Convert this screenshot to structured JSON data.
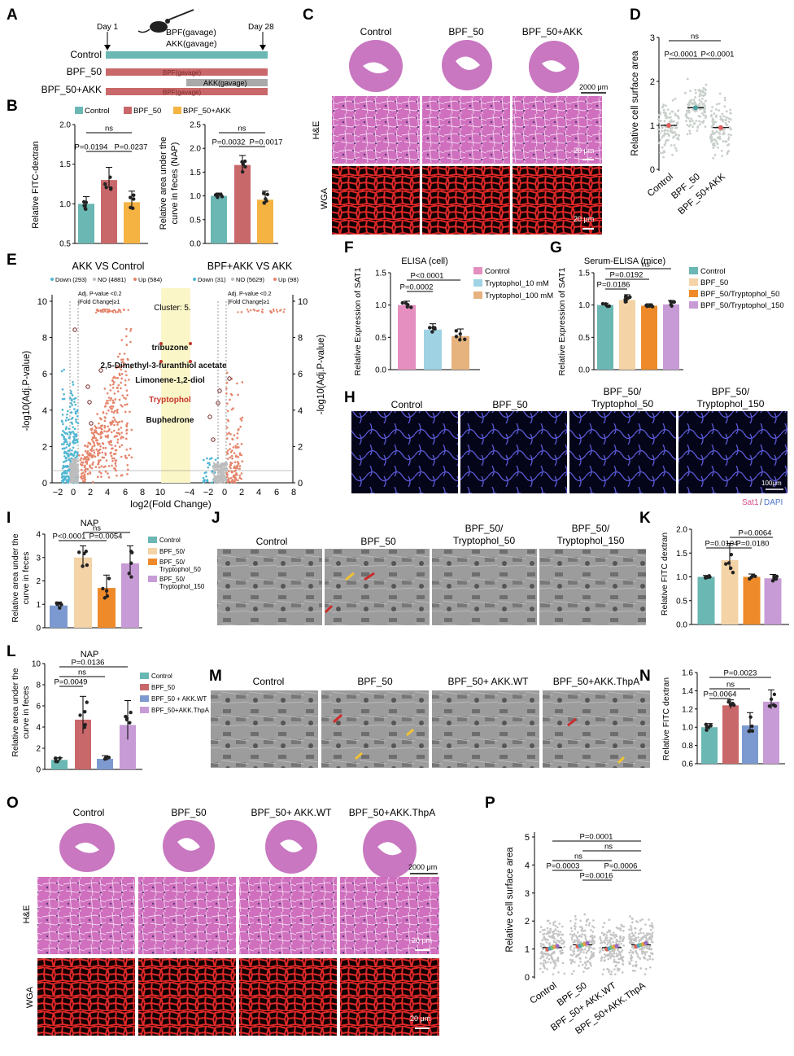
{
  "colors": {
    "teal": "#6ab7b3",
    "red": "#c9686a",
    "orange": "#f5b342",
    "pink": "#e58fc0",
    "lightblue": "#9fd3e4",
    "tan": "#e6b27e",
    "peach": "#f4d3a6",
    "deeporange": "#ee8a2a",
    "violet": "#c79bd6",
    "blue": "#7d9ad0",
    "heTissue": "#c65fae",
    "wga": "#d22020",
    "dapi": "#1a1a50"
  },
  "panels": {
    "A": {
      "letter": "A",
      "day1": "Day 1",
      "day28": "Day 28",
      "gavage1": "BPF(gavage)",
      "gavage2": "AKK(gavage)",
      "rows": [
        "Control",
        "BPF_50",
        "BPF_50+AKK"
      ],
      "bar_bpf": "BPF(gavage)",
      "bar_akk": "AKK(gavage)"
    },
    "B": {
      "letter": "B",
      "legend": [
        "Control",
        "BPF_50",
        "BPF_50+AKK"
      ],
      "left": {
        "ylabel": "Relative FITC-dextran",
        "yticks": [
          "0.5",
          "1.0",
          "1.5",
          "2.0"
        ],
        "ns": "ns",
        "p1": "P=0.0194",
        "p2": "P=0.0237"
      },
      "right": {
        "ylabel1": "Relative area under the",
        "ylabel2": "curve in feces (NAP)",
        "yticks": [
          "0.0",
          "0.5",
          "1.0",
          "1.5",
          "2.0",
          "2.5"
        ],
        "ns": "ns",
        "p1": "P=0.0032",
        "p2": "P=0.0017"
      }
    },
    "C": {
      "letter": "C",
      "cols": [
        "Control",
        "BPF_50",
        "BPF_50+AKK"
      ],
      "rowHE": "H&E",
      "rowWGA": "WGA",
      "scale1": "2000 μm",
      "scale2": "20 μm",
      "scale3": "20 μm"
    },
    "D": {
      "letter": "D",
      "ylabel": "Relative cell surface area",
      "yticks": [
        "0",
        "1",
        "2",
        "3"
      ],
      "xticks": [
        "Control",
        "BPF_50",
        "BPF_50+AKK"
      ],
      "ns": "ns",
      "p1": "P<0.0001",
      "p2": "P<0.0001"
    },
    "E": {
      "letter": "E",
      "title1": "AKK VS Control",
      "title2": "BPF+AKK VS AKK",
      "leg1": "Down (293)",
      "leg2": "NO (4881)",
      "leg3": "Up (584)",
      "leg4": "Down (31)",
      "leg5": "NO (5629)",
      "leg6": "Up (98)",
      "note1a": "Adj. P-value <0.2",
      "note1b": "|Fold Change|≥1",
      "note2a": "Adj. P-value <0.2",
      "note2b": "|Fold Change|≥1",
      "cluster": "Cluster: 5.",
      "compounds": [
        "tribuzone",
        "2,5-Dimethyl-3-furanthiol acetate",
        "Limonene-1,2-diol",
        "Tryptophol",
        "Buphedrone"
      ],
      "ylabel": "-log10(Adj.P-value)",
      "xlabel": "log2(Fold Change)",
      "yticks": [
        "0",
        "2",
        "4",
        "6",
        "8",
        "10"
      ],
      "xticks1": [
        "−2",
        "0",
        "2",
        "4",
        "6",
        "8",
        "10"
      ],
      "xticks2": [
        "−4",
        "−2",
        "0",
        "2",
        "4",
        "6",
        "8"
      ]
    },
    "F": {
      "letter": "F",
      "title": "ELISA (cell)",
      "ylabel": "Relative Expression of SAT1",
      "yticks": [
        "0.0",
        "0.5",
        "1.0",
        "1.5"
      ],
      "legend": [
        "Control",
        "Tryptophol_10 mM",
        "Tryptophol_100 mM"
      ],
      "p1": "P<0.0001",
      "p2": "P=0.0002"
    },
    "G": {
      "letter": "G",
      "title": "Serum-ELISA (mice)",
      "ylabel": "Relative Expression of SAT1",
      "yticks": [
        "0.0",
        "0.5",
        "1.0",
        "1.5"
      ],
      "legend": [
        "Control",
        "BPF_50",
        "BPF_50/Tryptophol_50",
        "BPF_50/Tryptophol_150"
      ],
      "ns": "ns",
      "p1": "P=0.0192",
      "p2": "P=0.0186"
    },
    "H": {
      "letter": "H",
      "cols": [
        "Control",
        "BPF_50",
        "BPF_50/",
        "Tryptophol_50",
        "BPF_50/",
        "Tryptophol_150"
      ],
      "scale": "100μm",
      "stain1": "Sat1",
      "stain2": "DAPI"
    },
    "I": {
      "letter": "I",
      "title": "NAP",
      "ylabel1": "Relative area under the",
      "ylabel2": "curve in feces",
      "yticks": [
        "0",
        "1",
        "2",
        "3",
        "4"
      ],
      "legend": [
        "Control",
        "BPF_50/",
        "BPF_50/",
        "Tryptophol_50",
        "BPF_50/",
        "Tryptophol_150"
      ],
      "ns": "ns",
      "p1": "P<0.0001",
      "p2": "P=0.0054"
    },
    "J": {
      "letter": "J",
      "cols": [
        "Control",
        "BPF_50",
        "BPF_50/",
        "Tryptophol_50",
        "BPF_50/",
        "Tryptophol_150"
      ]
    },
    "K": {
      "letter": "K",
      "ylabel": "Relative FITC dextran",
      "yticks": [
        "0.0",
        "0.5",
        "1.0",
        "1.5",
        "2.0"
      ],
      "p1": "P=0.0064",
      "p2": "P=0.0104",
      "p3": "P=0.0180"
    },
    "L": {
      "letter": "L",
      "title": "NAP",
      "ylabel1": "Relative area under the",
      "ylabel2": "curve in feces",
      "yticks": [
        "0",
        "2",
        "4",
        "6",
        "8",
        "10"
      ],
      "legend": [
        "Control",
        "BPF_50",
        "BPF_50 + AKK.WT",
        "BPF_50+AKK.ThpA"
      ],
      "ns": "ns",
      "p1": "P=0.0136",
      "p2": "P=0.0049"
    },
    "M": {
      "letter": "M",
      "cols": [
        "Control",
        "BPF_50",
        "BPF_50+ AKK.WT",
        "BPF_50+AKK.ThpA"
      ]
    },
    "N": {
      "letter": "N",
      "ylabel": "Relative FITC dextran",
      "yticks": [
        "0.6",
        "0.8",
        "1.0",
        "1.2",
        "1.4",
        "1.6"
      ],
      "ns": "ns",
      "p1": "P=0.0023",
      "p2": "P=0.0064"
    },
    "O": {
      "letter": "O",
      "cols": [
        "Control",
        "BPF_50",
        "BPF_50+ AKK.WT",
        "BPF_50+AKK.ThpA"
      ],
      "rowHE": "H&E",
      "rowWGA": "WGA",
      "scale1": "2000 μm",
      "scale2": "20 pm",
      "scale3": "20 μm"
    },
    "P": {
      "letter": "P",
      "ylabel": "Relative cell surface area",
      "yticks": [
        "0",
        "1",
        "2",
        "3",
        "4",
        "5"
      ],
      "xticks": [
        "Control",
        "BPF_50",
        "BPF_50+ AKK.WT",
        "BPF_50+AKK.ThpA"
      ],
      "p1": "P=0.0001",
      "ns1": "ns",
      "ns2": "ns",
      "p2": "P=0.0003",
      "p3": "P=0.0006",
      "p4": "P=0.0016"
    }
  },
  "chart_data": [
    {
      "panel": "B-left",
      "type": "bar",
      "categories": [
        "Control",
        "BPF_50",
        "BPF_50+AKK"
      ],
      "values": [
        1.0,
        1.3,
        1.02
      ],
      "ylim": [
        0.5,
        2.0
      ],
      "ylabel": "Relative FITC-dextran"
    },
    {
      "panel": "B-right",
      "type": "bar",
      "categories": [
        "Control",
        "BPF_50",
        "BPF_50+AKK"
      ],
      "values": [
        1.0,
        1.65,
        0.92
      ],
      "ylim": [
        0.0,
        2.5
      ]
    },
    {
      "panel": "D",
      "type": "scatter",
      "categories": [
        "Control",
        "BPF_50",
        "BPF_50+AKK"
      ],
      "values": [
        1.0,
        1.4,
        0.95
      ],
      "ylim": [
        0,
        3
      ],
      "ylabel": "Relative cell surface area"
    },
    {
      "panel": "F",
      "type": "bar",
      "categories": [
        "Control",
        "Tryptophol_10 mM",
        "Tryptophol_100 mM"
      ],
      "values": [
        1.0,
        0.62,
        0.52
      ],
      "ylim": [
        0,
        1.5
      ],
      "title": "ELISA (cell)",
      "ylabel": "Relative Expression of SAT1"
    },
    {
      "panel": "G",
      "type": "bar",
      "categories": [
        "Control",
        "BPF_50",
        "BPF_50/Tryptophol_50",
        "BPF_50/Tryptophol_150"
      ],
      "values": [
        1.0,
        1.08,
        0.99,
        1.01
      ],
      "ylim": [
        0,
        1.5
      ],
      "title": "Serum-ELISA (mice)",
      "ylabel": "Relative Expression of SAT1"
    },
    {
      "panel": "I",
      "type": "bar",
      "categories": [
        "Control",
        "BPF_50/",
        "BPF_50/ Tryptophol_50",
        "BPF_50/ Tryptophol_150"
      ],
      "values": [
        0.95,
        3.0,
        1.7,
        2.75
      ],
      "ylim": [
        0,
        4
      ],
      "title": "NAP"
    },
    {
      "panel": "K",
      "type": "bar",
      "categories": [
        "1",
        "2",
        "3",
        "4"
      ],
      "values": [
        1.0,
        1.35,
        1.0,
        0.97
      ],
      "ylim": [
        0,
        2.0
      ],
      "ylabel": "Relative FITC dextran"
    },
    {
      "panel": "L",
      "type": "bar",
      "categories": [
        "Control",
        "BPF_50",
        "BPF_50 + AKK.WT",
        "BPF_50+AKK.ThpA"
      ],
      "values": [
        0.9,
        4.7,
        1.0,
        4.2
      ],
      "ylim": [
        0,
        10
      ],
      "title": "NAP"
    },
    {
      "panel": "N",
      "type": "bar",
      "categories": [
        "1",
        "2",
        "3",
        "4"
      ],
      "values": [
        1.0,
        1.24,
        1.02,
        1.28
      ],
      "ylim": [
        0.6,
        1.6
      ],
      "ylabel": "Relative FITC dextran"
    },
    {
      "panel": "P",
      "type": "scatter",
      "categories": [
        "Control",
        "BPF_50",
        "BPF_50+ AKK.WT",
        "BPF_50+AKK.ThpA"
      ],
      "values": [
        1.05,
        1.15,
        1.05,
        1.15
      ],
      "ylim": [
        0,
        5
      ],
      "ylabel": "Relative cell surface area"
    }
  ]
}
